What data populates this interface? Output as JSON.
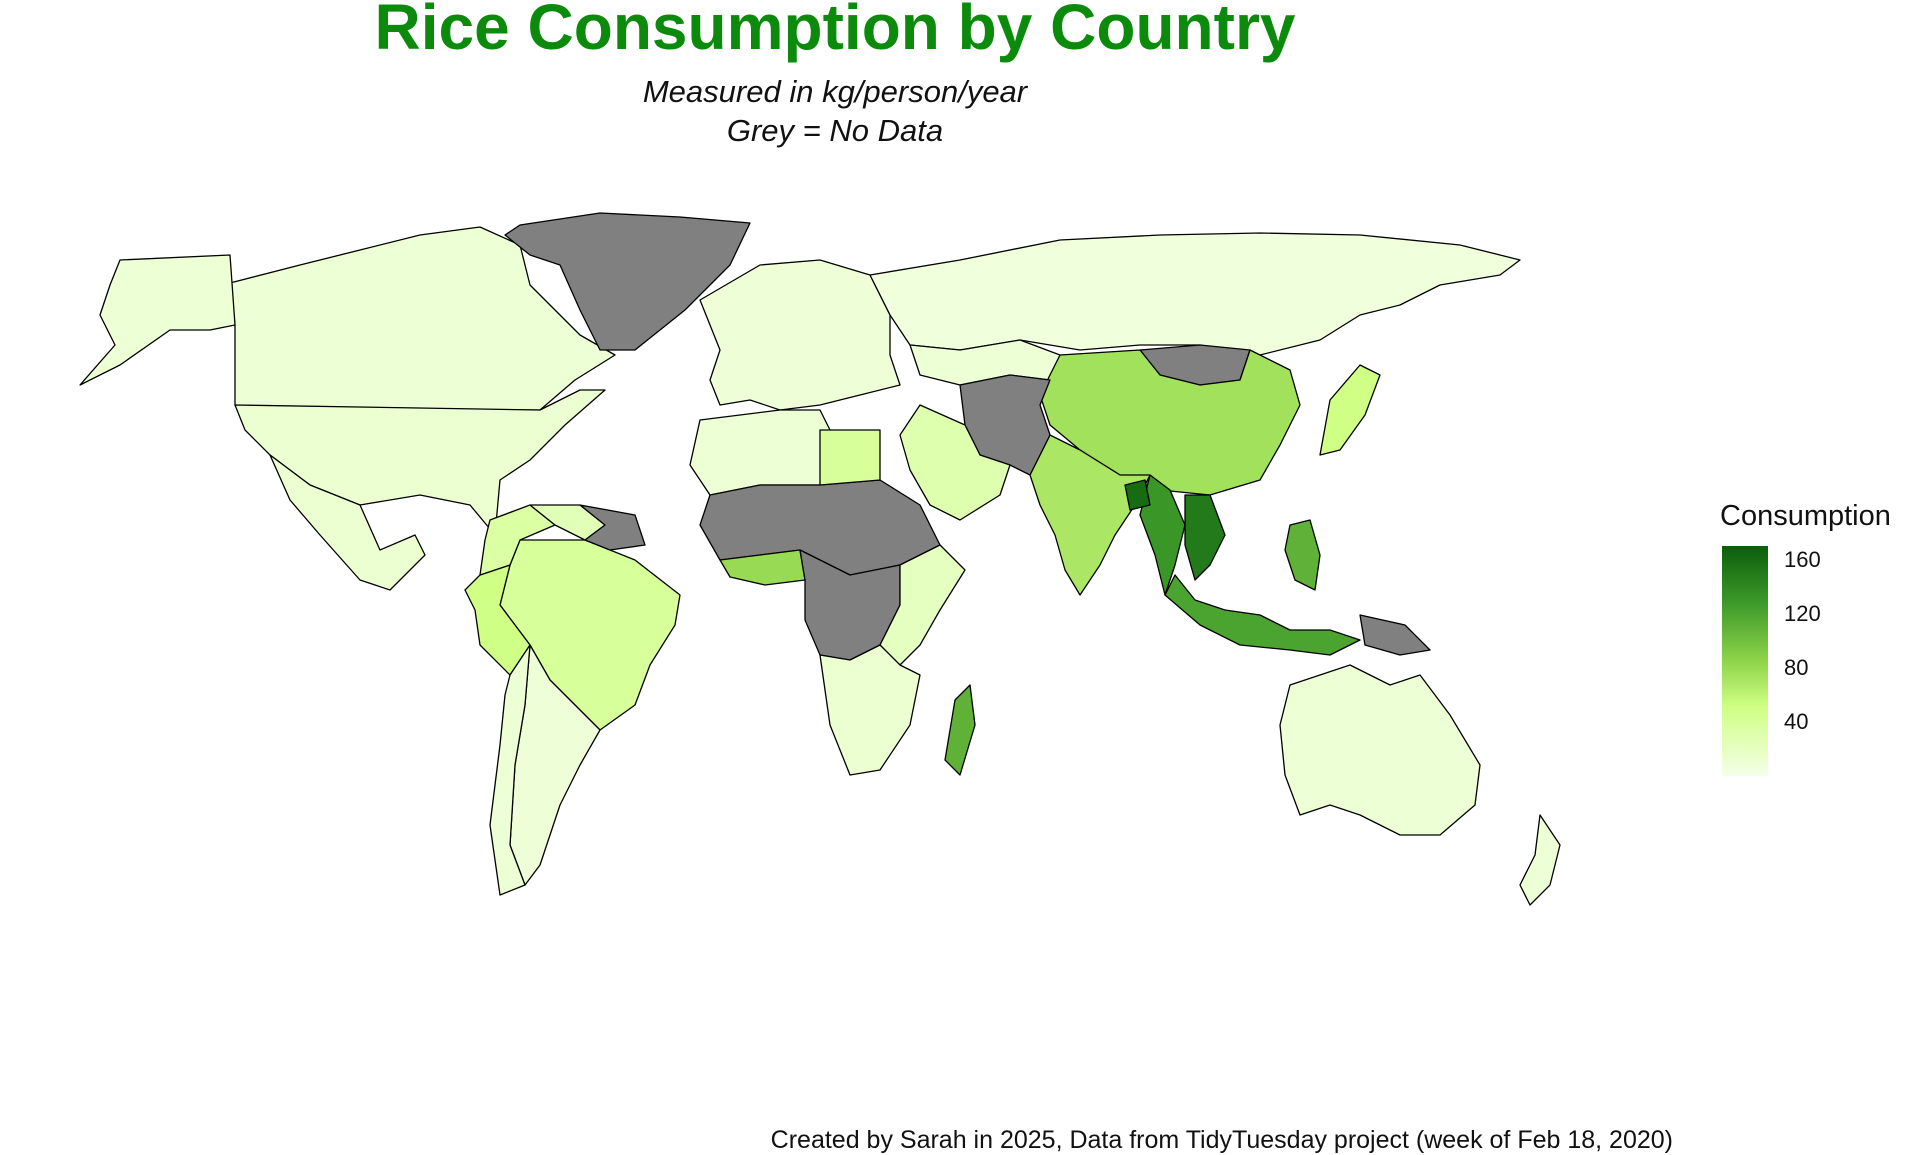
{
  "title": "Rice Consumption by Country",
  "subtitle_line1": "Measured in kg/person/year",
  "subtitle_line2": "Grey = No Data",
  "caption": "Created by Sarah in 2025, Data from TidyTuesday project (week of Feb 18, 2020)",
  "legend": {
    "title": "Consumption",
    "min": 0,
    "max": 170,
    "ticks": [
      {
        "value": 160,
        "label": "160"
      },
      {
        "value": 120,
        "label": "120"
      },
      {
        "value": 80,
        "label": "80"
      },
      {
        "value": 40,
        "label": "40"
      }
    ],
    "color_high": "#0b5e0b",
    "color_low": "#f4ffe8",
    "no_data_color": "#808080"
  },
  "regions": [
    {
      "name": "Canada",
      "value": 10
    },
    {
      "name": "Alaska (USA)",
      "value": 10
    },
    {
      "name": "USA",
      "value": 12
    },
    {
      "name": "Mexico",
      "value": 12
    },
    {
      "name": "Greenland",
      "value": null
    },
    {
      "name": "Brazil",
      "value": 40
    },
    {
      "name": "Peru",
      "value": 50
    },
    {
      "name": "Colombia",
      "value": 35
    },
    {
      "name": "Venezuela",
      "value": 25
    },
    {
      "name": "Guyana / Suriname",
      "value": null
    },
    {
      "name": "Argentina",
      "value": 8
    },
    {
      "name": "Chile",
      "value": 10
    },
    {
      "name": "Europe",
      "value": 8
    },
    {
      "name": "Russia",
      "value": 6
    },
    {
      "name": "Kazakhstan",
      "value": 10
    },
    {
      "name": "Mongolia",
      "value": null
    },
    {
      "name": "China",
      "value": 75
    },
    {
      "name": "India",
      "value": 70
    },
    {
      "name": "Central Asia",
      "value": null
    },
    {
      "name": "Middle East",
      "value": 30
    },
    {
      "name": "Japan",
      "value": 50
    },
    {
      "name": "North Africa",
      "value": 10
    },
    {
      "name": "Sahara / Sahel",
      "value": null
    },
    {
      "name": "Egypt",
      "value": 40
    },
    {
      "name": "West Africa coast",
      "value": 80
    },
    {
      "name": "Central Africa",
      "value": null
    },
    {
      "name": "East Africa",
      "value": 20
    },
    {
      "name": "Southern Africa",
      "value": 12
    },
    {
      "name": "Madagascar",
      "value": 110
    },
    {
      "name": "Myanmar / Thailand",
      "value": 130
    },
    {
      "name": "Vietnam / Cambodia",
      "value": 150
    },
    {
      "name": "Bangladesh",
      "value": 160
    },
    {
      "name": "Indonesia",
      "value": 120
    },
    {
      "name": "Philippines",
      "value": 110
    },
    {
      "name": "Papua New Guinea",
      "value": null
    },
    {
      "name": "Australia",
      "value": 10
    },
    {
      "name": "New Zealand",
      "value": 10
    }
  ]
}
